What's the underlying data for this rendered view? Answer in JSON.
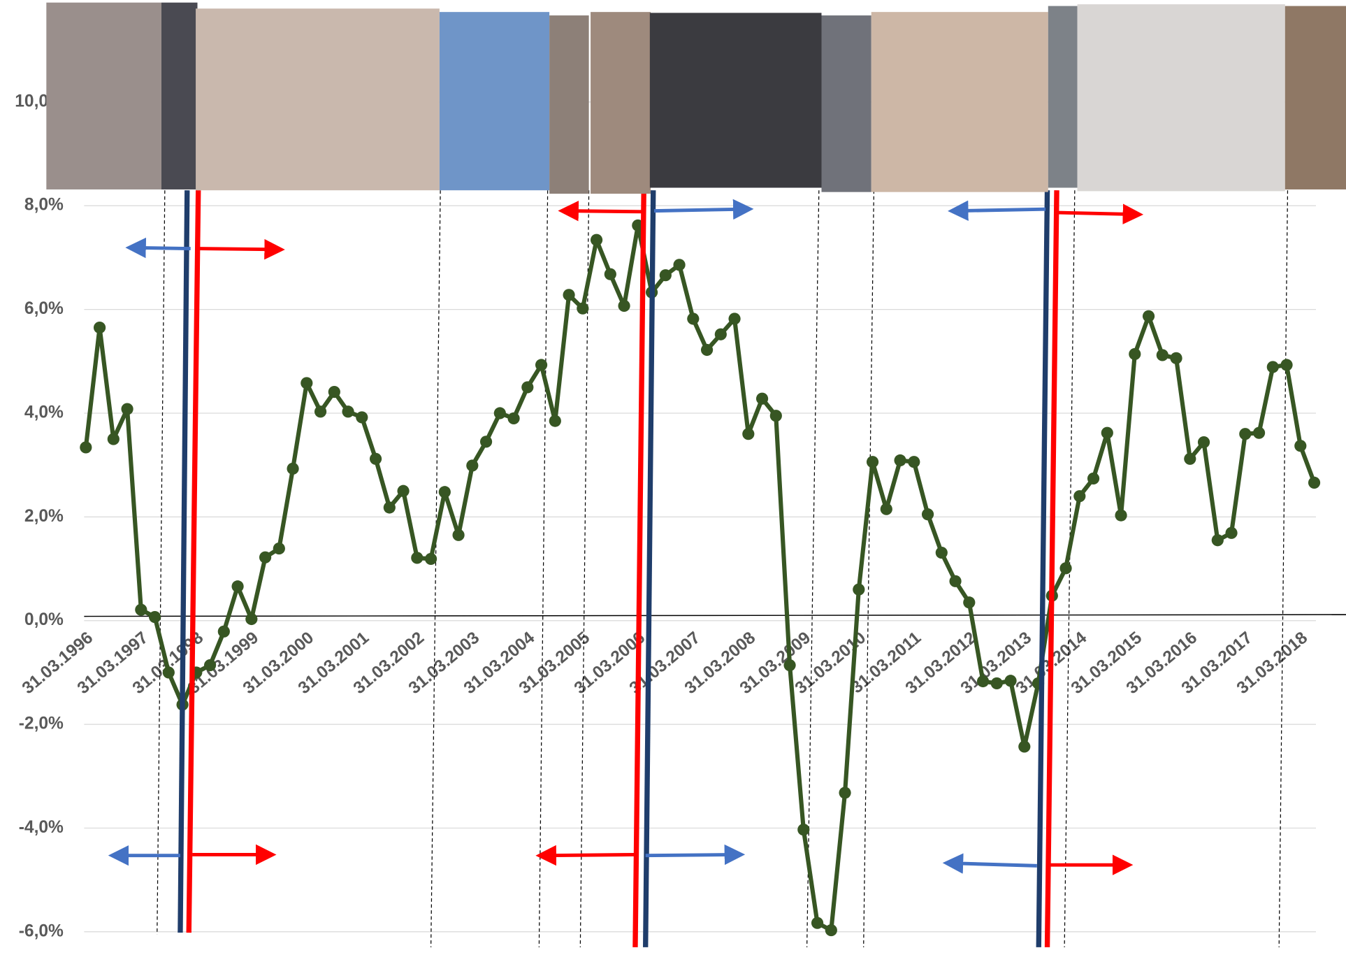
{
  "chart_data": {
    "type": "line",
    "categories": [
      "31.03.1996",
      null,
      null,
      null,
      "31.03.1997",
      null,
      null,
      null,
      "31.03.1998",
      null,
      null,
      null,
      "31.03.1999",
      null,
      null,
      null,
      "31.03.2000",
      null,
      null,
      null,
      "31.03.2001",
      null,
      null,
      null,
      "31.03.2002",
      null,
      null,
      null,
      "31.03.2003",
      null,
      null,
      null,
      "31.03.2004",
      null,
      null,
      null,
      "31.03.2005",
      null,
      null,
      null,
      "31.03.2006",
      null,
      null,
      null,
      "31.03.2007",
      null,
      null,
      null,
      "31.03.2008",
      null,
      null,
      null,
      "31.03.2009",
      null,
      null,
      null,
      "31.03.2010",
      null,
      null,
      null,
      "31.03.2011",
      null,
      null,
      null,
      "31.03.2012",
      null,
      null,
      null,
      "31.03.2013",
      null,
      null,
      null,
      "31.03.2014",
      null,
      null,
      null,
      "31.03.2015",
      null,
      null,
      null,
      "31.03.2016",
      null,
      null,
      null,
      "31.03.2017",
      null,
      null,
      null,
      "31.03.2018",
      null
    ],
    "series": [
      {
        "color": "#375623",
        "values": [
          3.34,
          5.65,
          3.5,
          4.08,
          0.21,
          0.07,
          -1.0,
          -1.62,
          -1.0,
          -0.86,
          -0.21,
          0.66,
          0.03,
          1.22,
          1.39,
          2.93,
          4.58,
          4.03,
          4.41,
          4.03,
          3.92,
          3.12,
          2.18,
          2.5,
          1.21,
          1.19,
          2.48,
          1.65,
          2.99,
          3.45,
          4.0,
          3.9,
          4.5,
          4.93,
          3.85,
          6.28,
          6.02,
          7.34,
          6.68,
          6.07,
          7.62,
          6.33,
          6.66,
          6.86,
          5.82,
          5.22,
          5.52,
          5.82,
          3.6,
          4.28,
          3.95,
          -0.86,
          -4.03,
          -5.83,
          -5.97,
          -3.32,
          0.6,
          3.06,
          2.15,
          3.09,
          3.06,
          2.05,
          1.31,
          0.76,
          0.35,
          -1.17,
          -1.21,
          -1.16,
          -2.43,
          -1.21,
          0.48,
          1.01,
          2.4,
          2.74,
          3.62,
          2.03,
          5.14,
          5.87,
          5.12,
          5.06,
          3.12,
          3.44,
          1.55,
          1.69,
          3.6,
          3.62,
          4.89,
          4.93,
          3.37,
          2.66
        ]
      }
    ],
    "ylim": [
      -6,
      10
    ],
    "yticks": [
      {
        "value": -6,
        "label": "-6,0%"
      },
      {
        "value": -4,
        "label": "-4,0%"
      },
      {
        "value": -2,
        "label": "-2,0%"
      },
      {
        "value": 0,
        "label": "0,0%"
      },
      {
        "value": 2,
        "label": "2,0%"
      },
      {
        "value": 4,
        "label": "4,0%"
      },
      {
        "value": 6,
        "label": "6,0%"
      },
      {
        "value": 8,
        "label": "8,0%"
      },
      {
        "value": 10,
        "label": "10,0%"
      }
    ],
    "grid": true
  }
}
